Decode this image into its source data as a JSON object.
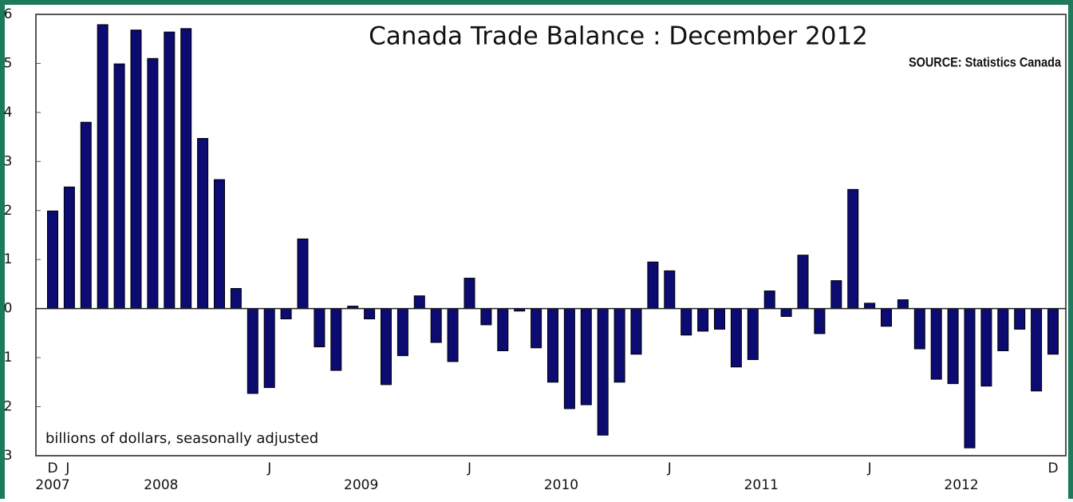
{
  "chart_data": {
    "type": "bar",
    "title": "Canada Trade Balance : December 2012",
    "subtitle": "SOURCE:  Statistics Canada",
    "y_label": "billions of dollars, seasonally adjusted",
    "color": "#0b0b72",
    "categories": [
      "D",
      "J",
      null,
      null,
      null,
      null,
      null,
      null,
      null,
      null,
      null,
      null,
      null,
      "J",
      null,
      null,
      null,
      null,
      null,
      null,
      null,
      null,
      null,
      null,
      null,
      "J",
      null,
      null,
      null,
      null,
      null,
      null,
      null,
      null,
      null,
      null,
      null,
      "J",
      null,
      null,
      null,
      null,
      null,
      null,
      null,
      null,
      null,
      null,
      null,
      "J",
      null,
      null,
      null,
      null,
      null,
      null,
      null,
      null,
      null,
      null,
      "D"
    ],
    "x_groups": [
      {
        "label": "2007",
        "from": 0,
        "to": 0
      },
      {
        "label": "2008",
        "from": 1,
        "to": 12
      },
      {
        "label": "2009",
        "from": 13,
        "to": 24
      },
      {
        "label": "2010",
        "from": 25,
        "to": 36
      },
      {
        "label": "2011",
        "from": 37,
        "to": 48
      },
      {
        "label": "2012",
        "from": 49,
        "to": 60
      }
    ],
    "values": [
      1.99,
      2.48,
      3.8,
      5.79,
      4.99,
      5.68,
      5.1,
      5.64,
      5.71,
      3.47,
      2.63,
      0.41,
      -1.73,
      -1.61,
      -0.21,
      1.42,
      -0.78,
      -1.26,
      0.05,
      -0.21,
      -1.55,
      -0.96,
      0.26,
      -0.69,
      -1.08,
      0.62,
      -0.33,
      -0.86,
      -0.05,
      -0.8,
      -1.5,
      -2.04,
      -1.96,
      -2.58,
      -1.5,
      -0.93,
      0.95,
      0.77,
      -0.54,
      -0.46,
      -0.42,
      -1.19,
      -1.04,
      0.36,
      -0.16,
      1.09,
      -0.51,
      0.57,
      2.43,
      0.11,
      -0.36,
      0.18,
      -0.82,
      -1.44,
      -1.53,
      -2.84,
      -1.58,
      -0.86,
      -0.42,
      -1.68,
      -0.93
    ],
    "ylim": [
      -3,
      6
    ],
    "yticks": [
      {
        "value": -3,
        "label": "3"
      },
      {
        "value": -2,
        "label": "2"
      },
      {
        "value": -1,
        "label": "1"
      },
      0,
      1,
      2,
      3,
      4,
      5,
      6
    ],
    "grid": false
  }
}
